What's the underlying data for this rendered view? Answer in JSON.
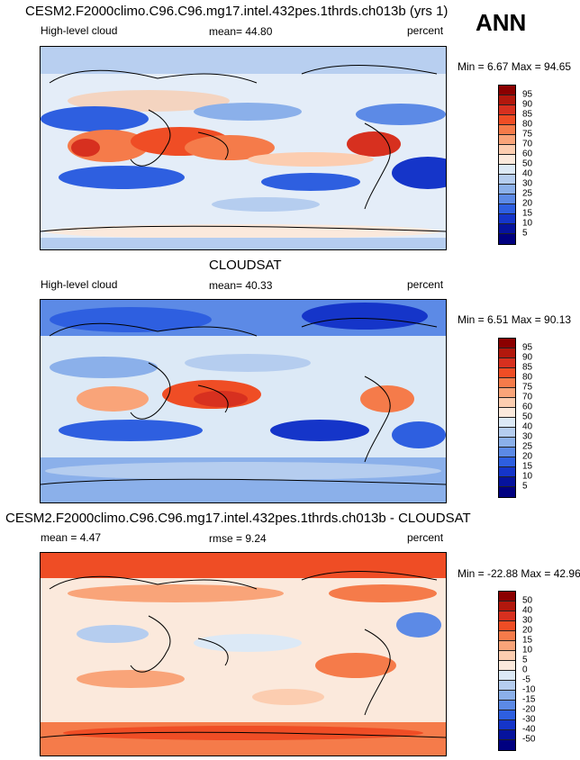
{
  "season": "ANN",
  "panel1": {
    "title": "CESM2.F2000climo.C96.C96.mg17.intel.432pes.1thrds.ch013b (yrs 1)",
    "left": "High-level cloud",
    "mean": "mean=  44.80",
    "units": "percent",
    "minmax": "Min =  6.67 Max =  94.65"
  },
  "panel2": {
    "title": "CLOUDSAT",
    "left": "High-level cloud",
    "mean": "mean=  40.33",
    "units": "percent",
    "minmax": "Min =  6.51 Max =  90.13"
  },
  "panel3": {
    "title": "CESM2.F2000climo.C96.C96.mg17.intel.432pes.1thrds.ch013b - CLOUDSAT",
    "left": "mean =  4.47",
    "mean": "rmse =  9.24",
    "units": "percent",
    "minmax": "Min = -22.88 Max =  42.96"
  },
  "cbar_abs": {
    "labels": [
      "95",
      "90",
      "85",
      "80",
      "75",
      "70",
      "60",
      "50",
      "40",
      "30",
      "25",
      "20",
      "15",
      "10",
      "5"
    ],
    "colors": [
      "#8b0000",
      "#b2180d",
      "#d7301f",
      "#ef4d25",
      "#f57b4a",
      "#f9a479",
      "#fccdb0",
      "#fbe9dc",
      "#dce9f6",
      "#b5cdef",
      "#8bb0ea",
      "#5c8ae6",
      "#2e5fe0",
      "#1535c9",
      "#06139d",
      "#000080"
    ]
  },
  "cbar_diff": {
    "labels": [
      "50",
      "40",
      "30",
      "20",
      "15",
      "10",
      "5",
      "0",
      "-5",
      "-10",
      "-15",
      "-20",
      "-30",
      "-40",
      "-50"
    ],
    "colors": [
      "#8b0000",
      "#b2180d",
      "#d7301f",
      "#ef4d25",
      "#f57b4a",
      "#f9a479",
      "#fccdb0",
      "#fbe9dc",
      "#dce9f6",
      "#b5cdef",
      "#8bb0ea",
      "#5c8ae6",
      "#2e5fe0",
      "#1535c9",
      "#06139d",
      "#000080"
    ]
  }
}
